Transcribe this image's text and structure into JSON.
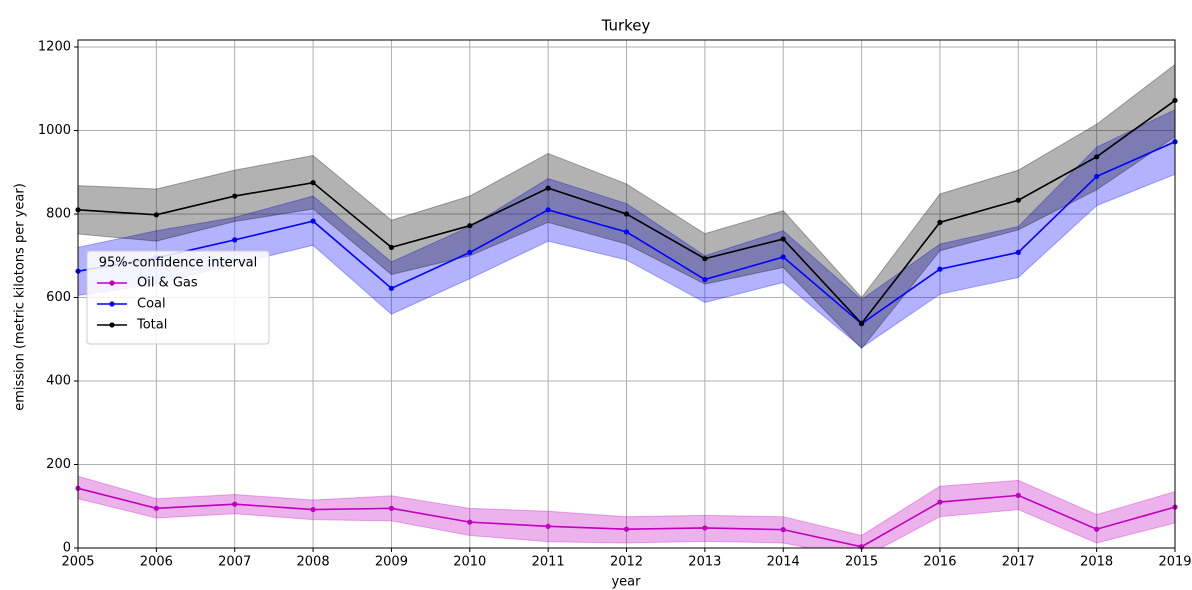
{
  "chart_data": {
    "type": "line",
    "title": "Turkey",
    "x_label": "year",
    "y_label": "emission (metric kilotons per year)",
    "x": [
      2005,
      2006,
      2007,
      2008,
      2009,
      2010,
      2011,
      2012,
      2013,
      2014,
      2015,
      2016,
      2017,
      2018,
      2019
    ],
    "xlim": [
      2005,
      2019
    ],
    "xticks": [
      2005,
      2006,
      2007,
      2008,
      2009,
      2010,
      2011,
      2012,
      2013,
      2014,
      2015,
      2016,
      2017,
      2018,
      2019
    ],
    "ylim": [
      0,
      1200
    ],
    "yticks": [
      0,
      200,
      400,
      600,
      800,
      1000,
      1200
    ],
    "grid": true,
    "legend_title": "95%-confidence interval",
    "legend_loc": "center left",
    "band_opacity": 0.3,
    "series": [
      {
        "name": "Oil & Gas",
        "color": "#bf00bf",
        "values": [
          143,
          95,
          105,
          92,
          95,
          62,
          52,
          45,
          48,
          44,
          3,
          110,
          126,
          45,
          98
        ],
        "upper": [
          172,
          118,
          128,
          115,
          125,
          95,
          88,
          75,
          78,
          75,
          30,
          148,
          162,
          80,
          135
        ],
        "lower": [
          118,
          72,
          82,
          68,
          65,
          30,
          15,
          12,
          16,
          12,
          -25,
          75,
          92,
          12,
          60
        ]
      },
      {
        "name": "Coal",
        "color": "#0000ff",
        "values": [
          663,
          695,
          738,
          783,
          622,
          708,
          810,
          757,
          643,
          697,
          537,
          668,
          708,
          890,
          973
        ],
        "upper": [
          720,
          760,
          792,
          843,
          685,
          770,
          885,
          825,
          700,
          760,
          595,
          728,
          770,
          960,
          1050
        ],
        "lower": [
          605,
          632,
          680,
          725,
          560,
          645,
          735,
          690,
          588,
          636,
          480,
          608,
          648,
          820,
          895
        ]
      },
      {
        "name": "Total",
        "color": "#000000",
        "values": [
          810,
          798,
          843,
          875,
          720,
          772,
          862,
          800,
          693,
          740,
          538,
          780,
          833,
          937,
          1072
        ],
        "upper": [
          868,
          860,
          905,
          940,
          785,
          843,
          945,
          872,
          753,
          808,
          600,
          848,
          905,
          1015,
          1158
        ],
        "lower": [
          752,
          735,
          782,
          812,
          655,
          700,
          780,
          728,
          632,
          672,
          478,
          712,
          762,
          858,
          985
        ]
      }
    ]
  }
}
